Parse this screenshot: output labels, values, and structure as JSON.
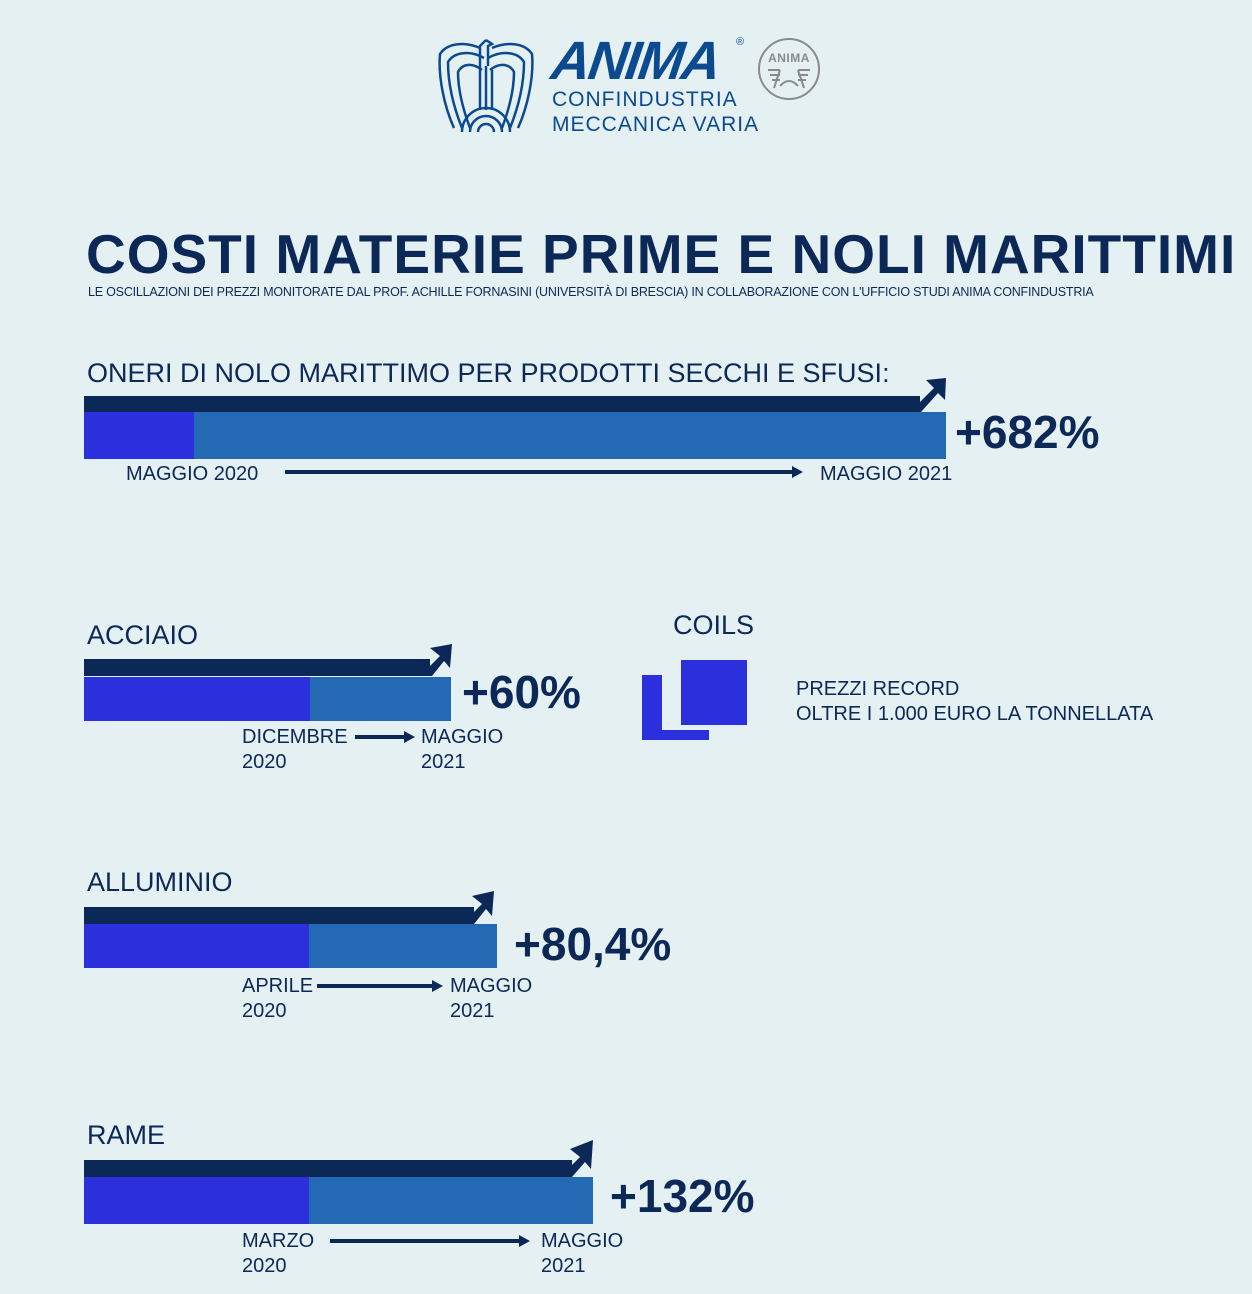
{
  "logo": {
    "brand": "ANIMA",
    "registered": "®",
    "line1": "CONFINDUSTRIA",
    "line2": "MECCANICA VARIA",
    "seal_text": "ANIMA"
  },
  "header": {
    "title": "COSTI MATERIE PRIME E NOLI MARITTIMI",
    "subtitle": "LE OSCILLAZIONI DEI PREZZI MONITORATE DAL PROF. ACHILLE FORNASINI (UNIVERSITÀ DI BRESCIA) IN COLLABORAZIONE CON L'UFFICIO STUDI ANIMA CONFINDUSTRIA"
  },
  "coils": {
    "title": "COILS",
    "line1": "PREZZI RECORD",
    "line2": "OLTRE I 1.000 EURO LA TONNELLATA"
  },
  "colors": {
    "navy": "#0c2857",
    "start": "#2b2fdc",
    "increase": "#2369b3",
    "background": "#e5f0f3"
  },
  "chart_data": {
    "type": "bar",
    "title": "COSTI MATERIE PRIME E NOLI MARITTIMI",
    "items": [
      {
        "name": "ONERI DI NOLO MARITTIMO PER PRODOTTI SECCHI E SFUSI:",
        "change_label": "+682%",
        "change_pct": 682,
        "from": "MAGGIO 2020",
        "to": "MAGGIO 2021"
      },
      {
        "name": "ACCIAIO",
        "change_label": "+60%",
        "change_pct": 60,
        "from_month": "DICEMBRE",
        "from_year": "2020",
        "to_month": "MAGGIO",
        "to_year": "2021"
      },
      {
        "name": "ALLUMINIO",
        "change_label": "+80,4%",
        "change_pct": 80.4,
        "from_month": "APRILE",
        "from_year": "2020",
        "to_month": "MAGGIO",
        "to_year": "2021"
      },
      {
        "name": "RAME",
        "change_label": "+132%",
        "change_pct": 132,
        "from_month": "MARZO",
        "from_year": "2020",
        "to_month": "MAGGIO",
        "to_year": "2021"
      }
    ]
  }
}
